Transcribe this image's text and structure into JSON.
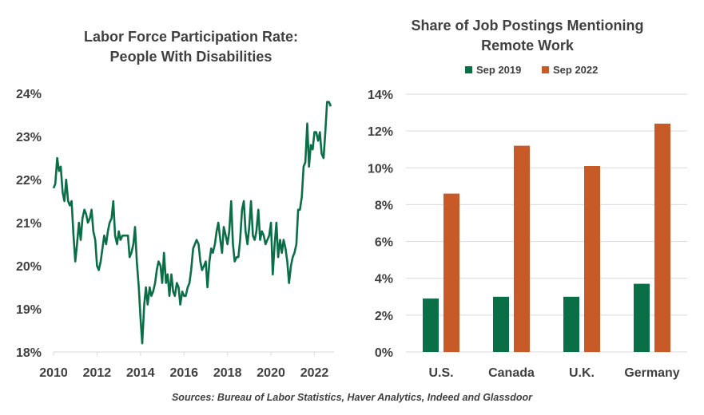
{
  "source": "Sources: Bureau of Labor Statistics, Haver Analytics, Indeed and Glassdoor",
  "colors": {
    "green": "#0a6e47",
    "orange": "#c75a26",
    "axis": "#d9d9d9",
    "text": "#404040"
  },
  "chart_data": [
    {
      "type": "line",
      "title_line1": "Labor Force Participation  Rate:",
      "title_line2": "People With Disabilities",
      "xlabel": "",
      "ylabel": "",
      "ylim": [
        18,
        24
      ],
      "xlim": [
        2010,
        2022.9
      ],
      "yticks": [
        "18%",
        "19%",
        "20%",
        "21%",
        "22%",
        "23%",
        "24%"
      ],
      "xticks": [
        "2010",
        "2012",
        "2014",
        "2016",
        "2018",
        "2020",
        "2022"
      ],
      "grid": false,
      "series": [
        {
          "color": "#0a6e47",
          "points": [
            [
              2010.0,
              21.8
            ],
            [
              2010.08,
              21.9
            ],
            [
              2010.17,
              22.5
            ],
            [
              2010.25,
              22.2
            ],
            [
              2010.33,
              22.3
            ],
            [
              2010.42,
              21.7
            ],
            [
              2010.5,
              21.5
            ],
            [
              2010.58,
              22.0
            ],
            [
              2010.67,
              21.5
            ],
            [
              2010.75,
              21.4
            ],
            [
              2010.83,
              21.5
            ],
            [
              2010.92,
              20.7
            ],
            [
              2011.0,
              20.1
            ],
            [
              2011.08,
              20.5
            ],
            [
              2011.17,
              21.0
            ],
            [
              2011.25,
              20.6
            ],
            [
              2011.33,
              21.1
            ],
            [
              2011.42,
              21.3
            ],
            [
              2011.5,
              21.2
            ],
            [
              2011.58,
              21.0
            ],
            [
              2011.67,
              21.1
            ],
            [
              2011.75,
              21.3
            ],
            [
              2011.83,
              20.8
            ],
            [
              2011.92,
              20.6
            ],
            [
              2012.0,
              20.0
            ],
            [
              2012.08,
              19.9
            ],
            [
              2012.17,
              20.1
            ],
            [
              2012.25,
              20.4
            ],
            [
              2012.33,
              20.7
            ],
            [
              2012.42,
              20.5
            ],
            [
              2012.5,
              20.8
            ],
            [
              2012.58,
              21.0
            ],
            [
              2012.67,
              21.1
            ],
            [
              2012.75,
              21.5
            ],
            [
              2012.83,
              20.7
            ],
            [
              2012.92,
              20.5
            ],
            [
              2013.0,
              20.8
            ],
            [
              2013.08,
              20.6
            ],
            [
              2013.17,
              20.7
            ],
            [
              2013.25,
              20.7
            ],
            [
              2013.33,
              20.7
            ],
            [
              2013.42,
              20.7
            ],
            [
              2013.5,
              20.2
            ],
            [
              2013.58,
              20.3
            ],
            [
              2013.67,
              20.5
            ],
            [
              2013.75,
              20.9
            ],
            [
              2013.83,
              20.1
            ],
            [
              2013.92,
              19.5
            ],
            [
              2014.0,
              18.8
            ],
            [
              2014.08,
              18.2
            ],
            [
              2014.17,
              19.1
            ],
            [
              2014.25,
              19.5
            ],
            [
              2014.33,
              19.1
            ],
            [
              2014.42,
              19.5
            ],
            [
              2014.5,
              19.3
            ],
            [
              2014.58,
              19.4
            ],
            [
              2014.67,
              19.6
            ],
            [
              2014.75,
              19.9
            ],
            [
              2014.83,
              20.1
            ],
            [
              2014.92,
              20.0
            ],
            [
              2015.0,
              19.6
            ],
            [
              2015.08,
              20.3
            ],
            [
              2015.17,
              19.6
            ],
            [
              2015.25,
              19.8
            ],
            [
              2015.33,
              19.3
            ],
            [
              2015.42,
              19.8
            ],
            [
              2015.5,
              19.4
            ],
            [
              2015.58,
              19.3
            ],
            [
              2015.67,
              19.6
            ],
            [
              2015.75,
              19.5
            ],
            [
              2015.83,
              19.1
            ],
            [
              2015.92,
              19.4
            ],
            [
              2016.0,
              19.3
            ],
            [
              2016.08,
              19.3
            ],
            [
              2016.17,
              19.5
            ],
            [
              2016.25,
              19.6
            ],
            [
              2016.33,
              19.9
            ],
            [
              2016.42,
              20.4
            ],
            [
              2016.5,
              20.5
            ],
            [
              2016.58,
              20.6
            ],
            [
              2016.67,
              20.5
            ],
            [
              2016.75,
              20.1
            ],
            [
              2016.83,
              19.9
            ],
            [
              2016.92,
              20.0
            ],
            [
              2017.0,
              20.1
            ],
            [
              2017.08,
              19.5
            ],
            [
              2017.17,
              20.1
            ],
            [
              2017.25,
              20.4
            ],
            [
              2017.33,
              20.3
            ],
            [
              2017.42,
              20.5
            ],
            [
              2017.5,
              20.8
            ],
            [
              2017.58,
              21.0
            ],
            [
              2017.67,
              20.6
            ],
            [
              2017.75,
              20.3
            ],
            [
              2017.83,
              20.9
            ],
            [
              2017.92,
              20.7
            ],
            [
              2018.0,
              20.5
            ],
            [
              2018.08,
              20.8
            ],
            [
              2018.17,
              21.5
            ],
            [
              2018.25,
              20.5
            ],
            [
              2018.33,
              20.1
            ],
            [
              2018.42,
              20.2
            ],
            [
              2018.5,
              20.2
            ],
            [
              2018.58,
              20.6
            ],
            [
              2018.67,
              21.3
            ],
            [
              2018.75,
              21.5
            ],
            [
              2018.83,
              20.8
            ],
            [
              2018.92,
              20.5
            ],
            [
              2019.0,
              20.9
            ],
            [
              2019.08,
              21.5
            ],
            [
              2019.17,
              20.7
            ],
            [
              2019.25,
              20.6
            ],
            [
              2019.33,
              20.8
            ],
            [
              2019.42,
              21.3
            ],
            [
              2019.5,
              20.6
            ],
            [
              2019.58,
              20.8
            ],
            [
              2019.67,
              20.7
            ],
            [
              2019.75,
              20.5
            ],
            [
              2019.83,
              20.6
            ],
            [
              2019.92,
              20.7
            ],
            [
              2020.0,
              21.0
            ],
            [
              2020.08,
              19.8
            ],
            [
              2020.17,
              20.5
            ],
            [
              2020.25,
              21.0
            ],
            [
              2020.33,
              20.2
            ],
            [
              2020.42,
              20.6
            ],
            [
              2020.5,
              20.3
            ],
            [
              2020.58,
              20.6
            ],
            [
              2020.67,
              20.4
            ],
            [
              2020.75,
              20.1
            ],
            [
              2020.83,
              19.6
            ],
            [
              2020.92,
              20.0
            ],
            [
              2021.0,
              20.2
            ],
            [
              2021.08,
              20.3
            ],
            [
              2021.17,
              20.5
            ],
            [
              2021.25,
              21.3
            ],
            [
              2021.33,
              21.3
            ],
            [
              2021.42,
              21.6
            ],
            [
              2021.5,
              22.3
            ],
            [
              2021.58,
              22.4
            ],
            [
              2021.67,
              23.3
            ],
            [
              2021.75,
              22.3
            ],
            [
              2021.83,
              22.8
            ],
            [
              2021.92,
              22.7
            ],
            [
              2022.0,
              23.1
            ],
            [
              2022.08,
              23.1
            ],
            [
              2022.17,
              22.9
            ],
            [
              2022.25,
              23.1
            ],
            [
              2022.33,
              22.6
            ],
            [
              2022.42,
              22.5
            ],
            [
              2022.5,
              23.1
            ],
            [
              2022.58,
              23.8
            ],
            [
              2022.67,
              23.8
            ],
            [
              2022.75,
              23.7
            ]
          ]
        }
      ]
    },
    {
      "type": "bar",
      "title_line1": "Share of Job Postings Mentioning",
      "title_line2": "Remote Work",
      "xlabel": "",
      "ylabel": "",
      "ylim": [
        0,
        14
      ],
      "yticks": [
        "0%",
        "2%",
        "4%",
        "6%",
        "8%",
        "10%",
        "12%",
        "14%"
      ],
      "categories": [
        "U.S.",
        "Canada",
        "U.K.",
        "Germany"
      ],
      "grid": true,
      "legend": "top",
      "series": [
        {
          "name": "Sep 2019",
          "color": "#0a6e47",
          "values": [
            2.9,
            3.0,
            3.0,
            3.7
          ]
        },
        {
          "name": "Sep 2022",
          "color": "#c75a26",
          "values": [
            8.6,
            11.2,
            10.1,
            12.4
          ]
        }
      ]
    }
  ]
}
